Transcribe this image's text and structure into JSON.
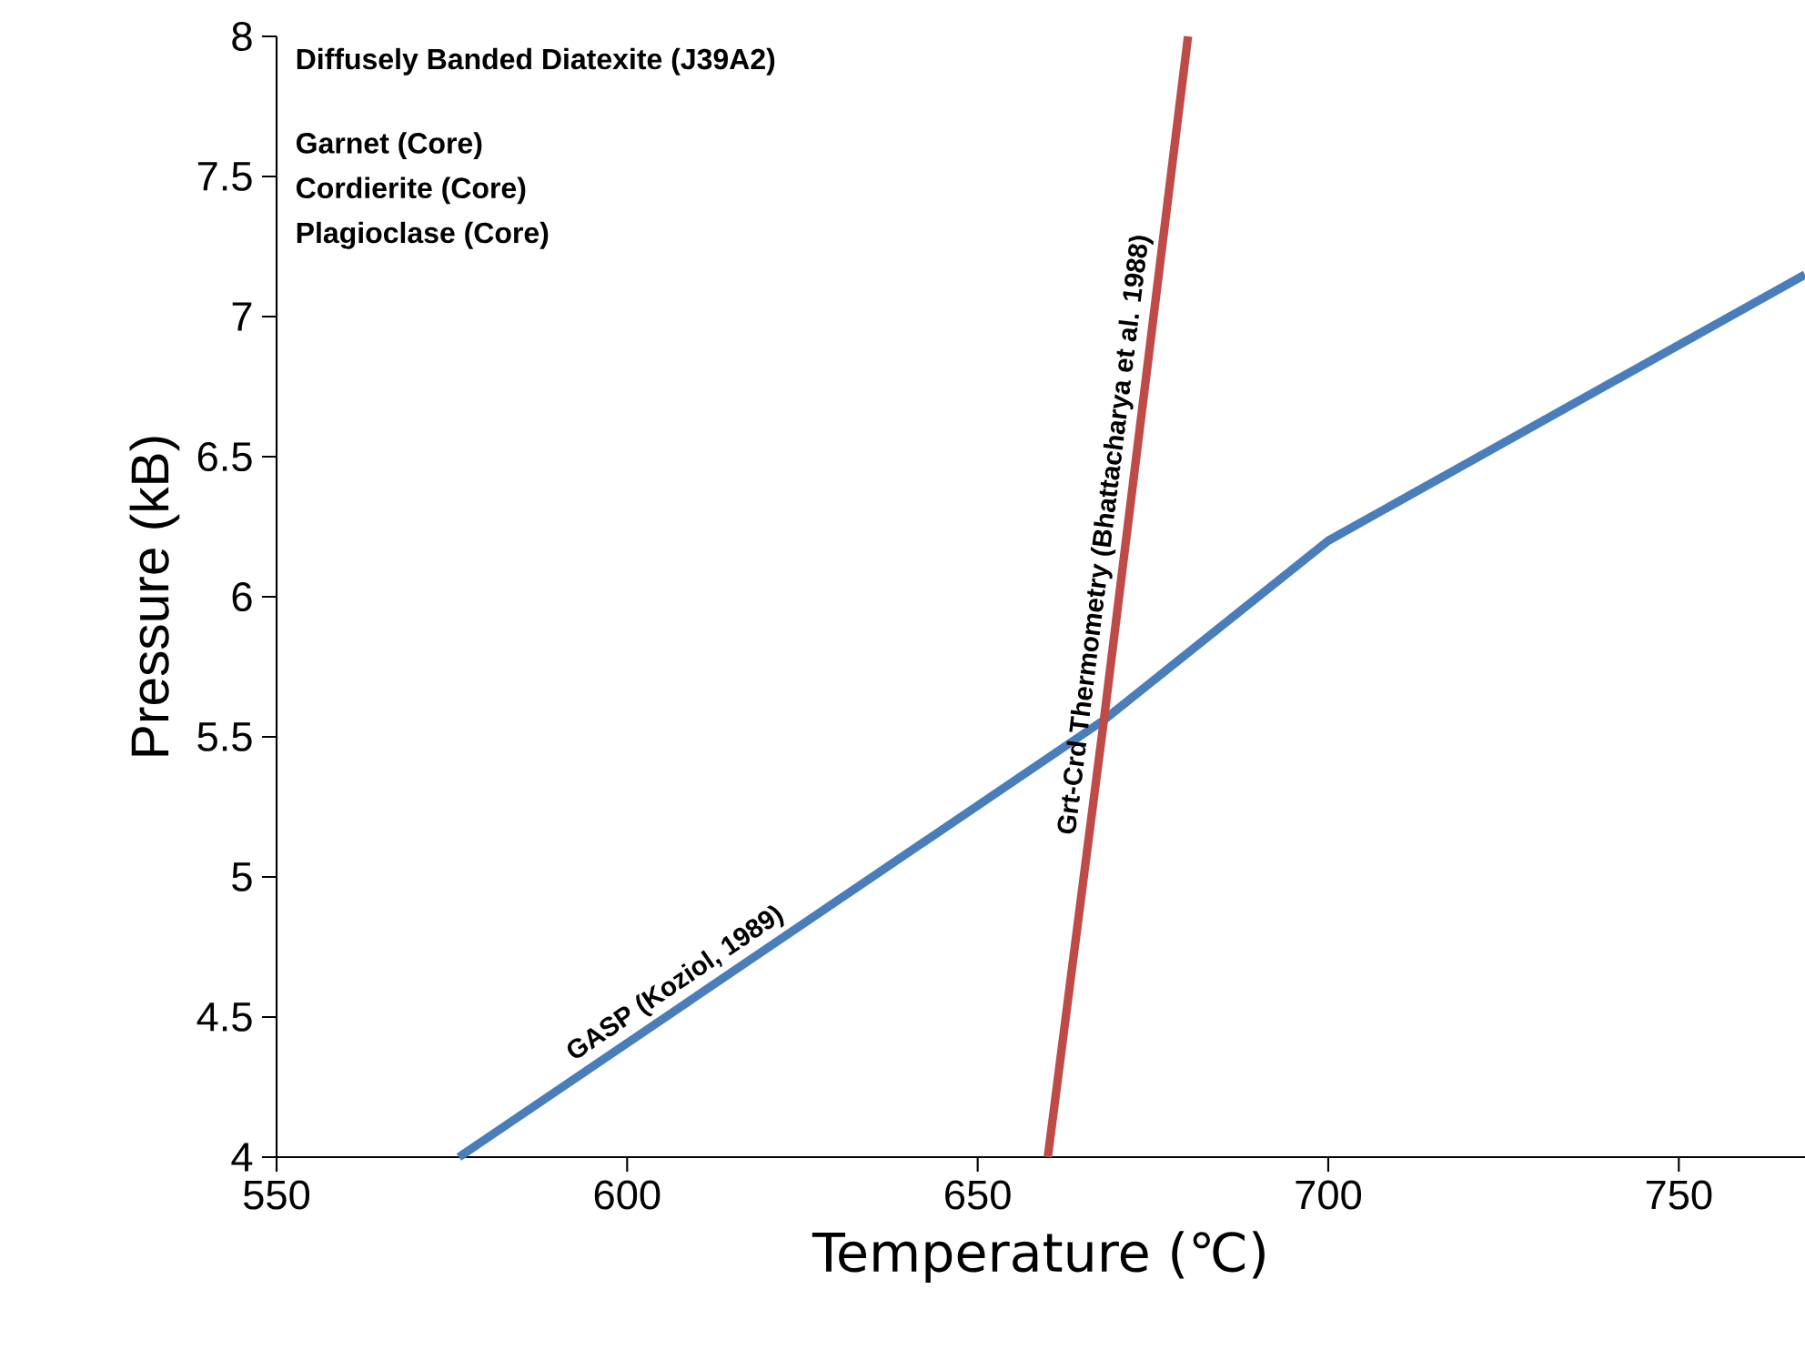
{
  "chart_data": {
    "type": "line",
    "title": "Diffusely Banded Diatexite (J39A2)",
    "annotations": [
      "Garnet (Core)",
      "Cordierite (Core)",
      "Plagioclase (Core)"
    ],
    "xlabel": "Temperature (℃)",
    "ylabel": "Pressure (kB)",
    "xlim": [
      550,
      768
    ],
    "ylim": [
      4,
      8
    ],
    "xticks": [
      550,
      600,
      650,
      700,
      750
    ],
    "yticks": [
      4,
      4.5,
      5,
      5.5,
      6,
      6.5,
      7,
      7.5,
      8
    ],
    "grid": false,
    "legend": false,
    "marker": "none",
    "line_style": "solid",
    "series": [
      {
        "name": "GASP  (Koziol, 1989)",
        "color": "#4a7ebb",
        "x": [
          576,
          668,
          700,
          768
        ],
        "values": [
          4,
          5.56,
          6.2,
          7.15
        ]
      },
      {
        "name": "Grt-Crd Thermometry  (Bhattacharya et al. 1988)",
        "color": "#be4b48",
        "x": [
          660,
          668,
          680
        ],
        "values": [
          4,
          5.56,
          8
        ]
      }
    ]
  }
}
